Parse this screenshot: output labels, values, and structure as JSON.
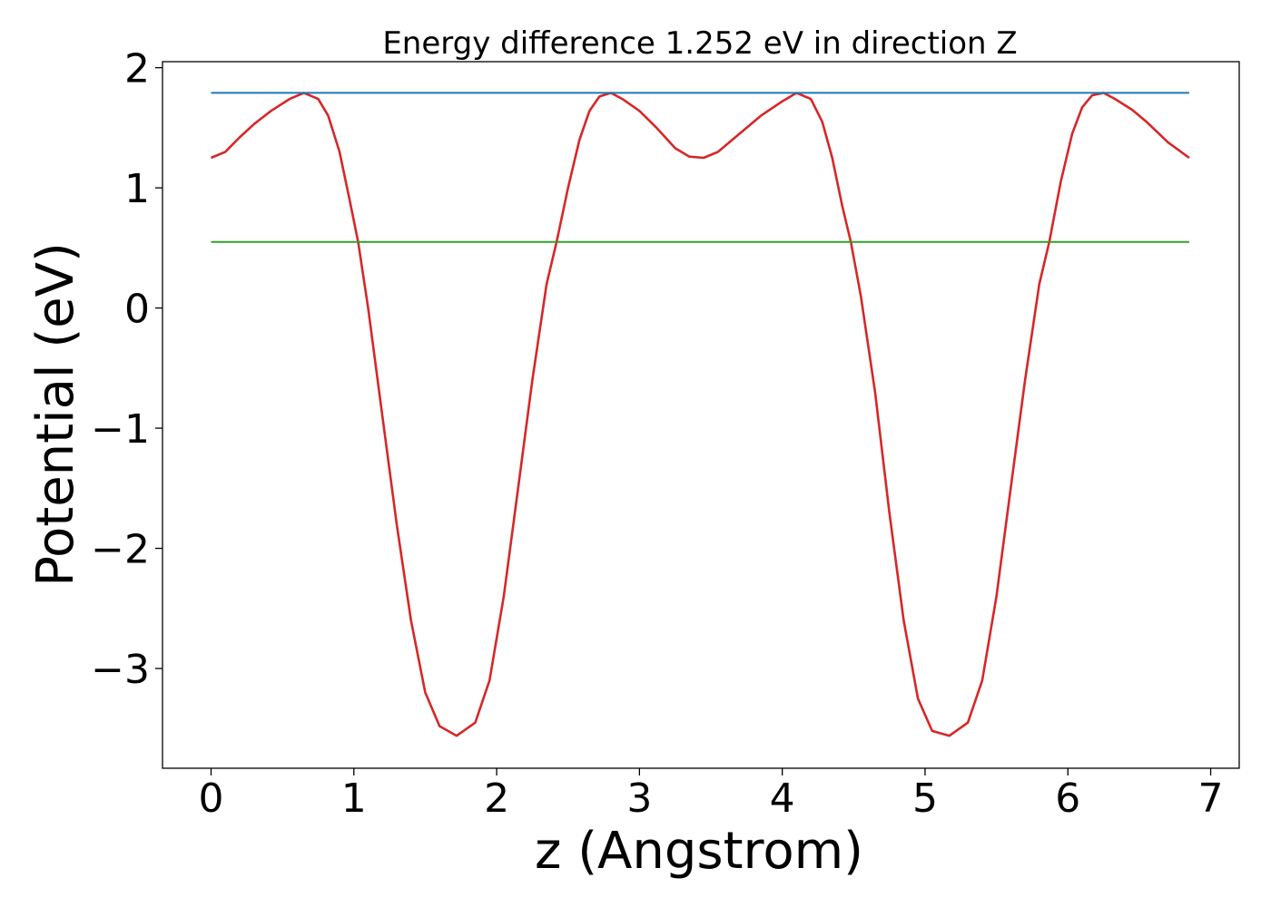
{
  "chart_data": {
    "type": "line",
    "title": "Energy difference 1.252 eV in direction Z",
    "xlabel": "z (Angstrom)",
    "ylabel": "Potential (eV)",
    "xlim": [
      -0.34,
      7.2
    ],
    "ylim": [
      -3.83,
      2.05
    ],
    "xticks": [
      0,
      1,
      2,
      3,
      4,
      5,
      6,
      7
    ],
    "yticks": [
      -3,
      -2,
      -1,
      0,
      1,
      2
    ],
    "xtick_labels": [
      "0",
      "1",
      "2",
      "3",
      "4",
      "5",
      "6",
      "7"
    ],
    "ytick_labels": [
      "−3",
      "−2",
      "−1",
      "0",
      "1",
      "2"
    ],
    "grid": false,
    "legend": "none",
    "series": [
      {
        "color": "#d62728",
        "x": [
          0.0,
          0.1,
          0.2,
          0.3,
          0.42,
          0.55,
          0.65,
          0.75,
          0.82,
          0.9,
          0.97,
          1.03,
          1.1,
          1.2,
          1.3,
          1.4,
          1.5,
          1.6,
          1.72,
          1.85,
          1.95,
          2.05,
          2.15,
          2.25,
          2.35,
          2.42,
          2.5,
          2.58,
          2.65,
          2.72,
          2.8,
          2.88,
          3.0,
          3.12,
          3.25,
          3.35,
          3.45,
          3.55,
          3.7,
          3.85,
          4.0,
          4.1,
          4.2,
          4.28,
          4.35,
          4.42,
          4.48,
          4.55,
          4.65,
          4.75,
          4.85,
          4.95,
          5.05,
          5.17,
          5.3,
          5.4,
          5.5,
          5.6,
          5.7,
          5.8,
          5.87,
          5.95,
          6.03,
          6.1,
          6.17,
          6.25,
          6.33,
          6.45,
          6.55,
          6.7,
          6.85
        ],
        "y": [
          1.25,
          1.3,
          1.42,
          1.53,
          1.64,
          1.74,
          1.79,
          1.74,
          1.6,
          1.3,
          0.9,
          0.55,
          0.0,
          -0.9,
          -1.8,
          -2.6,
          -3.2,
          -3.48,
          -3.56,
          -3.45,
          -3.1,
          -2.4,
          -1.5,
          -0.6,
          0.2,
          0.55,
          1.0,
          1.4,
          1.64,
          1.76,
          1.79,
          1.74,
          1.64,
          1.5,
          1.33,
          1.26,
          1.25,
          1.3,
          1.45,
          1.6,
          1.72,
          1.79,
          1.74,
          1.55,
          1.25,
          0.85,
          0.55,
          0.1,
          -0.7,
          -1.7,
          -2.6,
          -3.25,
          -3.52,
          -3.56,
          -3.45,
          -3.1,
          -2.4,
          -1.5,
          -0.6,
          0.2,
          0.55,
          1.05,
          1.45,
          1.67,
          1.77,
          1.79,
          1.74,
          1.65,
          1.55,
          1.38,
          1.25
        ]
      },
      {
        "color": "#1f77b4",
        "x": [
          0.0,
          6.85
        ],
        "y": [
          1.79,
          1.79
        ]
      },
      {
        "color": "#2ca02c",
        "x": [
          0.0,
          6.85
        ],
        "y": [
          0.55,
          0.55
        ]
      }
    ]
  }
}
